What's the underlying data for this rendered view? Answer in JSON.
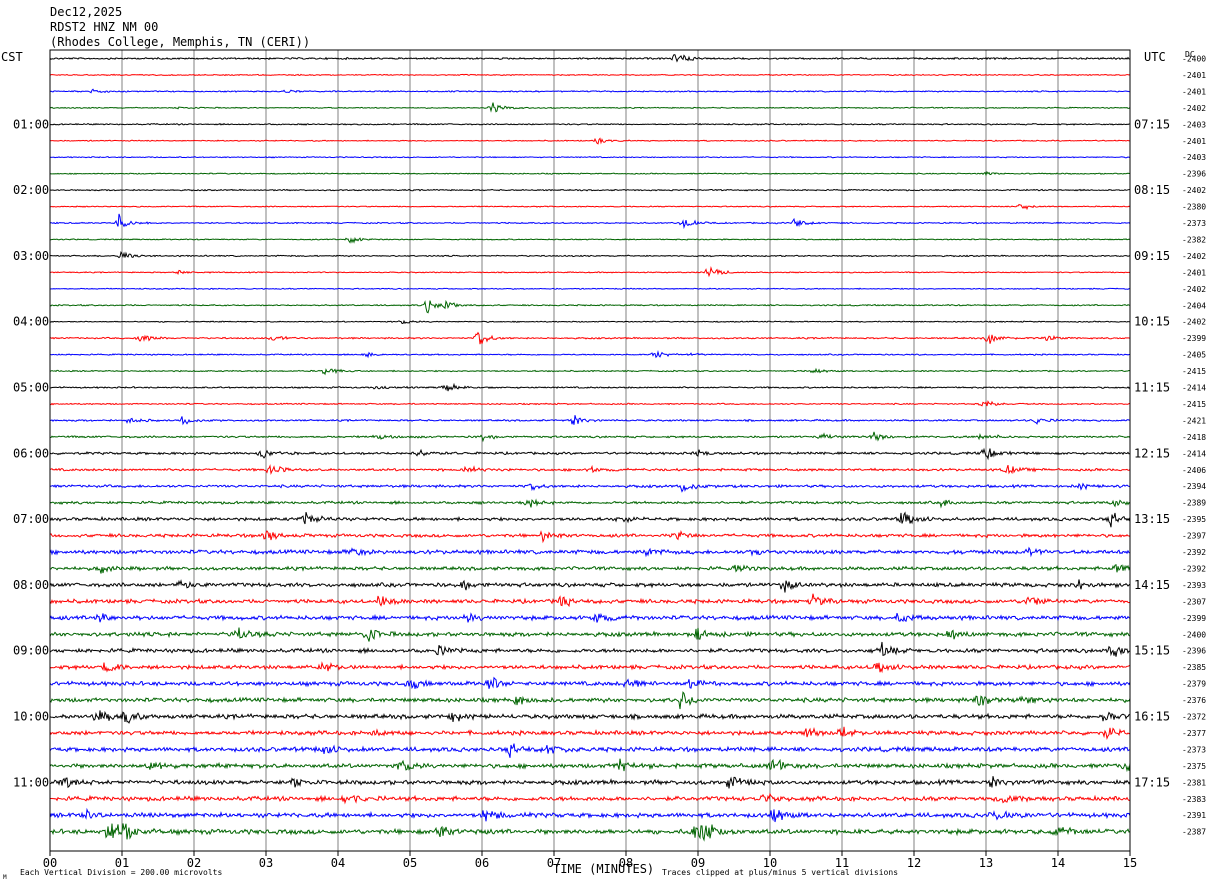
{
  "header": {
    "date": "Dec12,2025",
    "station": "RDST2 HNZ NM 00",
    "location": "(Rhodes College, Memphis, TN (CERI))"
  },
  "left_axis_label": "CST",
  "right_axis_label": "UTC",
  "dc_label": "DC",
  "footer": {
    "scale_note": "Each Vertical Division =  200.00 microvolts",
    "clip_note": "Traces clipped at plus/minus 5 vertical divisions",
    "corner_mark": "M"
  },
  "colors": {
    "cycle": [
      "#000000",
      "#ff0000",
      "#0000ff",
      "#006400"
    ],
    "grid": "#808080",
    "frame": "#000000"
  },
  "chart_data": {
    "type": "line",
    "title": "RDST2 HNZ NM 00",
    "xlabel": "TIME (MINUTES)",
    "ylabel": "",
    "x_ticks": [
      "00",
      "01",
      "02",
      "03",
      "04",
      "05",
      "06",
      "07",
      "08",
      "09",
      "10",
      "11",
      "12",
      "13",
      "14",
      "15"
    ],
    "xlim": [
      0,
      15
    ],
    "trace_minutes": 15,
    "left_time_labels": [
      {
        "trace": 4,
        "label": "01:00"
      },
      {
        "trace": 8,
        "label": "02:00"
      },
      {
        "trace": 12,
        "label": "03:00"
      },
      {
        "trace": 16,
        "label": "04:00"
      },
      {
        "trace": 20,
        "label": "05:00"
      },
      {
        "trace": 24,
        "label": "06:00"
      },
      {
        "trace": 28,
        "label": "07:00"
      },
      {
        "trace": 32,
        "label": "08:00"
      },
      {
        "trace": 36,
        "label": "09:00"
      },
      {
        "trace": 40,
        "label": "10:00"
      },
      {
        "trace": 44,
        "label": "11:00"
      }
    ],
    "right_time_labels": [
      {
        "trace": 4,
        "label": "07:15"
      },
      {
        "trace": 8,
        "label": "08:15"
      },
      {
        "trace": 12,
        "label": "09:15"
      },
      {
        "trace": 16,
        "label": "10:15"
      },
      {
        "trace": 20,
        "label": "11:15"
      },
      {
        "trace": 24,
        "label": "12:15"
      },
      {
        "trace": 28,
        "label": "13:15"
      },
      {
        "trace": 32,
        "label": "14:15"
      },
      {
        "trace": 36,
        "label": "15:15"
      },
      {
        "trace": 40,
        "label": "16:15"
      },
      {
        "trace": 44,
        "label": "17:15"
      }
    ],
    "traces": [
      {
        "dc": "-2400",
        "noise": 0.8,
        "events": [
          [
            8.7,
            2.2
          ]
        ]
      },
      {
        "dc": "-2401",
        "noise": 0.5,
        "events": []
      },
      {
        "dc": "-2401",
        "noise": 0.6,
        "events": [
          [
            0.6,
            0.8
          ],
          [
            3.3,
            0.6
          ]
        ]
      },
      {
        "dc": "-2402",
        "noise": 0.5,
        "events": [
          [
            6.15,
            2.2
          ],
          [
            1.8,
            0.5
          ]
        ]
      },
      {
        "dc": "-2403",
        "noise": 0.6,
        "events": []
      },
      {
        "dc": "-2401",
        "noise": 0.5,
        "events": [
          [
            7.6,
            1.0
          ]
        ]
      },
      {
        "dc": "-2403",
        "noise": 0.5,
        "events": []
      },
      {
        "dc": "-2396",
        "noise": 0.5,
        "events": [
          [
            13.0,
            0.6
          ]
        ]
      },
      {
        "dc": "-2402",
        "noise": 0.6,
        "events": []
      },
      {
        "dc": "-2380",
        "noise": 0.5,
        "events": [
          [
            13.5,
            1.2
          ]
        ]
      },
      {
        "dc": "-2373",
        "noise": 0.6,
        "events": [
          [
            0.95,
            2.8
          ],
          [
            8.8,
            2.0
          ],
          [
            10.35,
            2.2
          ]
        ]
      },
      {
        "dc": "-2382",
        "noise": 0.5,
        "events": [
          [
            4.15,
            1.5
          ]
        ]
      },
      {
        "dc": "-2402",
        "noise": 0.6,
        "events": [
          [
            1.0,
            1.8
          ]
        ]
      },
      {
        "dc": "-2401",
        "noise": 0.5,
        "events": [
          [
            9.15,
            2.4
          ],
          [
            1.8,
            0.6
          ]
        ]
      },
      {
        "dc": "-2402",
        "noise": 0.5,
        "events": []
      },
      {
        "dc": "-2404",
        "noise": 0.6,
        "events": [
          [
            5.25,
            2.2
          ],
          [
            5.5,
            1.2
          ]
        ]
      },
      {
        "dc": "-2402",
        "noise": 0.5,
        "events": [
          [
            4.9,
            0.8
          ]
        ]
      },
      {
        "dc": "-2399",
        "noise": 0.7,
        "events": [
          [
            1.25,
            1.4
          ],
          [
            3.1,
            1.2
          ],
          [
            5.95,
            3.0
          ],
          [
            13.05,
            2.0
          ],
          [
            13.85,
            1.0
          ]
        ]
      },
      {
        "dc": "-2405",
        "noise": 0.6,
        "events": [
          [
            4.4,
            0.8
          ],
          [
            8.4,
            1.6
          ],
          [
            8.9,
            0.6
          ]
        ]
      },
      {
        "dc": "-2415",
        "noise": 0.6,
        "events": [
          [
            3.8,
            1.8
          ],
          [
            10.6,
            0.9
          ]
        ]
      },
      {
        "dc": "-2414",
        "noise": 0.7,
        "events": [
          [
            5.5,
            2.2
          ],
          [
            4.5,
            0.6
          ]
        ]
      },
      {
        "dc": "-2415",
        "noise": 0.6,
        "events": [
          [
            12.95,
            1.8
          ]
        ]
      },
      {
        "dc": "-2421",
        "noise": 0.8,
        "events": [
          [
            1.1,
            1.2
          ],
          [
            1.85,
            1.6
          ],
          [
            7.25,
            2.0
          ],
          [
            13.7,
            1.0
          ]
        ]
      },
      {
        "dc": "-2418",
        "noise": 0.9,
        "events": [
          [
            4.55,
            1.0
          ],
          [
            6.0,
            1.2
          ],
          [
            10.7,
            1.0
          ],
          [
            11.45,
            1.6
          ],
          [
            12.95,
            1.4
          ]
        ]
      },
      {
        "dc": "-2414",
        "noise": 1.1,
        "events": [
          [
            2.95,
            1.8
          ],
          [
            5.1,
            1.2
          ],
          [
            13.0,
            2.4
          ],
          [
            9.0,
            1.0
          ]
        ]
      },
      {
        "dc": "-2406",
        "noise": 1.1,
        "events": [
          [
            3.05,
            2.0
          ],
          [
            5.8,
            1.2
          ],
          [
            13.3,
            1.6
          ],
          [
            7.5,
            1.0
          ]
        ]
      },
      {
        "dc": "-2394",
        "noise": 1.2,
        "events": [
          [
            8.8,
            2.4
          ],
          [
            6.7,
            1.2
          ],
          [
            14.3,
            1.0
          ]
        ]
      },
      {
        "dc": "-2389",
        "noise": 1.2,
        "events": [
          [
            6.65,
            1.4
          ],
          [
            12.4,
            1.2
          ],
          [
            14.8,
            1.2
          ]
        ]
      },
      {
        "dc": "-2395",
        "noise": 1.5,
        "events": [
          [
            3.55,
            2.2
          ],
          [
            11.85,
            2.8
          ],
          [
            14.75,
            2.4
          ],
          [
            7.9,
            1.2
          ]
        ]
      },
      {
        "dc": "-2397",
        "noise": 1.5,
        "events": [
          [
            3.0,
            2.4
          ],
          [
            6.85,
            2.2
          ],
          [
            8.7,
            1.8
          ]
        ]
      },
      {
        "dc": "-2392",
        "noise": 1.8,
        "events": [
          [
            4.2,
            1.6
          ],
          [
            8.3,
            1.6
          ],
          [
            9.8,
            1.6
          ],
          [
            13.6,
            1.8
          ]
        ]
      },
      {
        "dc": "-2392",
        "noise": 1.6,
        "events": [
          [
            0.7,
            1.4
          ],
          [
            9.55,
            1.6
          ],
          [
            14.8,
            1.4
          ]
        ]
      },
      {
        "dc": "-2393",
        "noise": 1.8,
        "events": [
          [
            1.8,
            2.0
          ],
          [
            5.7,
            2.0
          ],
          [
            10.2,
            2.2
          ],
          [
            14.3,
            2.0
          ]
        ]
      },
      {
        "dc": "-2307",
        "noise": 1.8,
        "events": [
          [
            4.6,
            2.4
          ],
          [
            7.1,
            1.8
          ],
          [
            10.6,
            1.8
          ],
          [
            13.6,
            1.6
          ]
        ]
      },
      {
        "dc": "-2399",
        "noise": 1.9,
        "events": [
          [
            0.7,
            1.8
          ],
          [
            5.8,
            1.6
          ],
          [
            7.6,
            2.0
          ],
          [
            11.8,
            1.8
          ]
        ]
      },
      {
        "dc": "-2400",
        "noise": 1.9,
        "events": [
          [
            2.6,
            2.4
          ],
          [
            4.4,
            2.8
          ],
          [
            9.0,
            1.8
          ],
          [
            12.5,
            1.8
          ]
        ]
      },
      {
        "dc": "-2396",
        "noise": 1.8,
        "events": [
          [
            11.55,
            2.4
          ],
          [
            14.75,
            2.0
          ],
          [
            5.4,
            1.6
          ]
        ]
      },
      {
        "dc": "-2385",
        "noise": 1.8,
        "events": [
          [
            0.8,
            2.2
          ],
          [
            3.8,
            2.0
          ],
          [
            11.5,
            1.8
          ]
        ]
      },
      {
        "dc": "-2379",
        "noise": 1.9,
        "events": [
          [
            6.1,
            2.4
          ],
          [
            8.0,
            2.2
          ],
          [
            8.9,
            2.0
          ],
          [
            5.0,
            1.6
          ]
        ]
      },
      {
        "dc": "-2376",
        "noise": 1.9,
        "events": [
          [
            8.75,
            3.2
          ],
          [
            12.9,
            2.2
          ],
          [
            13.5,
            2.0
          ],
          [
            6.5,
            1.6
          ]
        ]
      },
      {
        "dc": "-2372",
        "noise": 2.0,
        "events": [
          [
            0.65,
            2.6
          ],
          [
            1.05,
            2.4
          ],
          [
            14.65,
            2.2
          ],
          [
            5.6,
            1.6
          ]
        ]
      },
      {
        "dc": "-2377",
        "noise": 1.9,
        "events": [
          [
            10.5,
            2.0
          ],
          [
            11.0,
            1.8
          ],
          [
            14.7,
            2.0
          ],
          [
            4.5,
            1.6
          ]
        ]
      },
      {
        "dc": "-2373",
        "noise": 2.0,
        "events": [
          [
            6.4,
            2.2
          ],
          [
            6.95,
            2.4
          ],
          [
            3.8,
            1.6
          ]
        ]
      },
      {
        "dc": "-2375",
        "noise": 2.0,
        "events": [
          [
            1.4,
            1.8
          ],
          [
            4.9,
            2.0
          ],
          [
            7.9,
            2.0
          ],
          [
            10.05,
            2.6
          ],
          [
            14.95,
            2.4
          ]
        ]
      },
      {
        "dc": "-2381",
        "noise": 2.0,
        "events": [
          [
            0.2,
            1.8
          ],
          [
            3.4,
            2.0
          ],
          [
            9.45,
            2.2
          ],
          [
            13.05,
            2.0
          ]
        ]
      },
      {
        "dc": "-2383",
        "noise": 2.0,
        "events": [
          [
            4.1,
            1.8
          ],
          [
            9.9,
            2.0
          ],
          [
            13.2,
            1.8
          ]
        ]
      },
      {
        "dc": "-2391",
        "noise": 2.1,
        "events": [
          [
            0.45,
            2.2
          ],
          [
            6.05,
            2.4
          ],
          [
            10.05,
            2.6
          ],
          [
            13.1,
            2.0
          ]
        ]
      },
      {
        "dc": "-2387",
        "noise": 2.2,
        "events": [
          [
            0.8,
            3.0
          ],
          [
            1.0,
            3.2
          ],
          [
            5.4,
            2.6
          ],
          [
            8.95,
            3.4
          ],
          [
            9.1,
            3.0
          ],
          [
            14.0,
            2.2
          ]
        ]
      }
    ]
  }
}
